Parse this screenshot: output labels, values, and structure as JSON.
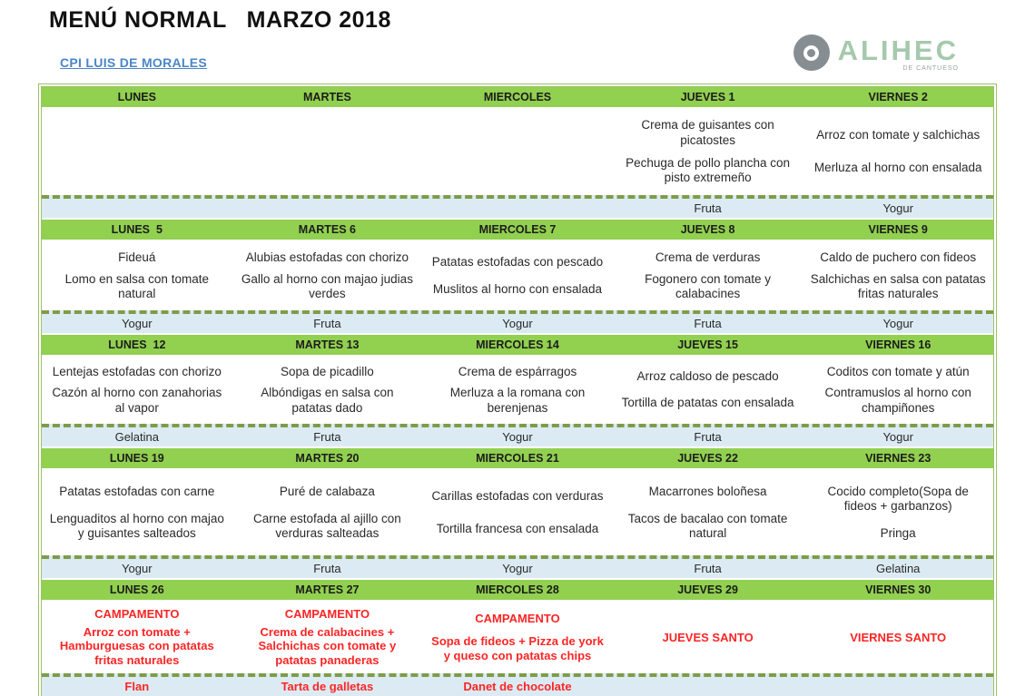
{
  "page": {
    "title": "MENÚ NORMAL   MARZO 2018",
    "subtitle": "CPI LUIS DE MORALES"
  },
  "logo": {
    "name": "ALIHEC",
    "tagline": "DE CANTUESO"
  },
  "colors": {
    "header_green": "#92d050",
    "dashed_line_green": "#7e9c48",
    "dessert_row_blue": "#dcebf3",
    "special_red": "#fb2525",
    "subtitle_link_blue": "#4a86c8",
    "logo_gray": "#878e91",
    "logo_green": "#a5c9ad"
  },
  "menu": {
    "weeks": [
      {
        "days": [
          {
            "header": "LUNES",
            "dishes": [],
            "dessert": ""
          },
          {
            "header": "MARTES",
            "dishes": [],
            "dessert": ""
          },
          {
            "header": "MIERCOLES",
            "dishes": [],
            "dessert": ""
          },
          {
            "header": "JUEVES 1",
            "dishes": [
              "Crema de guisantes con picatostes",
              "Pechuga de pollo plancha con pisto extremeño"
            ],
            "dessert": "Fruta"
          },
          {
            "header": "VIERNES 2",
            "dishes": [
              "Arroz con tomate y salchichas",
              "Merluza al horno con ensalada"
            ],
            "dessert": "Yogur"
          }
        ]
      },
      {
        "days": [
          {
            "header": "LUNES  5",
            "dishes": [
              "Fideuá",
              "Lomo en salsa con tomate natural"
            ],
            "dessert": "Yogur"
          },
          {
            "header": "MARTES 6",
            "dishes": [
              "Alubias estofadas con chorizo",
              "Gallo al horno con majao judias verdes"
            ],
            "dessert": "Fruta"
          },
          {
            "header": "MIERCOLES 7",
            "dishes": [
              "Patatas estofadas con pescado",
              "Muslitos al horno con ensalada"
            ],
            "dessert": "Yogur"
          },
          {
            "header": "JUEVES 8",
            "dishes": [
              "Crema de verduras",
              "Fogonero con tomate y calabacines"
            ],
            "dessert": "Fruta"
          },
          {
            "header": "VIERNES 9",
            "dishes": [
              "Caldo de puchero con fideos",
              "Salchichas en salsa con patatas fritas naturales"
            ],
            "dessert": "Yogur"
          }
        ]
      },
      {
        "days": [
          {
            "header": "LUNES  12",
            "dishes": [
              "Lentejas estofadas con chorizo",
              "Cazón al horno con zanahorias al vapor"
            ],
            "dessert": "Gelatina"
          },
          {
            "header": "MARTES 13",
            "dishes": [
              "Sopa de picadillo",
              "Albóndigas en salsa con patatas dado"
            ],
            "dessert": "Fruta"
          },
          {
            "header": "MIERCOLES 14",
            "dishes": [
              "Crema de espárragos",
              "Merluza a la romana con berenjenas"
            ],
            "dessert": "Yogur"
          },
          {
            "header": "JUEVES 15",
            "dishes": [
              "Arroz caldoso de pescado",
              "Tortilla de patatas con ensalada"
            ],
            "dessert": "Fruta"
          },
          {
            "header": "VIERNES 16",
            "dishes": [
              "Coditos con tomate y atún",
              "Contramuslos al horno con champiñones"
            ],
            "dessert": "Yogur"
          }
        ]
      },
      {
        "days": [
          {
            "header": "LUNES 19",
            "dishes": [
              "Patatas estofadas con carne",
              "Lenguaditos al horno con majao y guisantes salteados"
            ],
            "dessert": "Yogur"
          },
          {
            "header": "MARTES 20",
            "dishes": [
              "Puré de calabaza",
              "Carne estofada al ajillo con verduras salteadas"
            ],
            "dessert": "Fruta"
          },
          {
            "header": "MIERCOLES 21",
            "dishes": [
              "Carillas estofadas con verduras",
              "Tortilla francesa con ensalada"
            ],
            "dessert": "Yogur"
          },
          {
            "header": "JUEVES 22",
            "dishes": [
              "Macarrones boloñesa",
              "Tacos de bacalao con tomate natural"
            ],
            "dessert": "Fruta"
          },
          {
            "header": "VIERNES 23",
            "dishes": [
              "Cocido completo(Sopa de fideos + garbanzos)",
              "Pringa"
            ],
            "dessert": "Gelatina"
          }
        ]
      },
      {
        "days": [
          {
            "header": "LUNES 26",
            "dishes": [
              "CAMPAMENTO",
              "Arroz con tomate + Hamburguesas con patatas fritas naturales"
            ],
            "dessert": "Flan"
          },
          {
            "header": "MARTES 27",
            "dishes": [
              "CAMPAMENTO",
              "Crema de calabacines + Salchichas con tomate y patatas panaderas"
            ],
            "dessert": "Tarta de galletas"
          },
          {
            "header": "MIERCOLES 28",
            "dishes": [
              "CAMPAMENTO",
              "Sopa de fideos + Pizza de york y queso con patatas chips"
            ],
            "dessert": "Danet de chocolate"
          },
          {
            "header": "JUEVES 29",
            "dishes": [
              "JUEVES SANTO"
            ],
            "dessert": ""
          },
          {
            "header": "VIERNES 30",
            "dishes": [
              "VIERNES SANTO"
            ],
            "dessert": ""
          }
        ]
      }
    ]
  }
}
